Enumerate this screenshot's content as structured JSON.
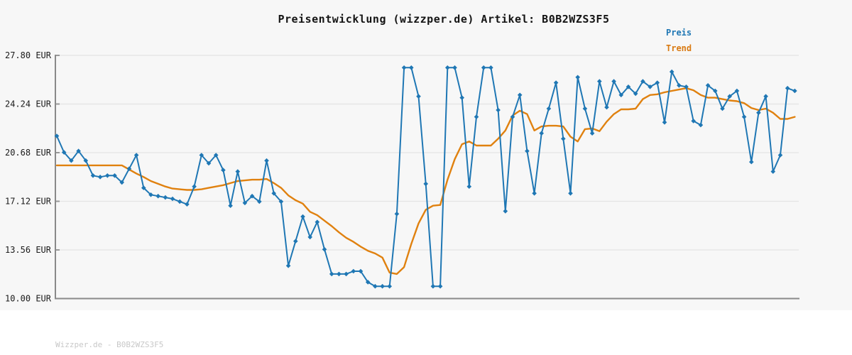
{
  "page": {
    "title": "Preisentwicklung (wizzper.de) Artikel: B0B2WZS3F5",
    "watermark": "Wizzper.de - B0B2WZS3F5",
    "background": "#f7f7f7",
    "footer_background": "#ffffff"
  },
  "legend": [
    {
      "label": "Preis",
      "color": "#1f77b4"
    },
    {
      "label": "Trend",
      "color": "#d97a12"
    }
  ],
  "chart_data": {
    "type": "line",
    "title": "Preisentwicklung (wizzper.de) Artikel: B0B2WZS3F5",
    "xlabel": "",
    "ylabel": "",
    "ylim": [
      10.0,
      27.8
    ],
    "y_ticks": [
      27.8,
      24.24,
      20.68,
      17.12,
      13.56,
      10.0
    ],
    "y_tick_labels": [
      "27.80 EUR",
      "24.24 EUR",
      "20.68 EUR",
      "17.12 EUR",
      "13.56 EUR",
      "10.00 EUR"
    ],
    "x_axis": {
      "tick_labels_visible": false,
      "point_count": 103
    },
    "grid": "horizontal",
    "legend_position": "top-right",
    "colors": {
      "price": "#1f77b4",
      "trend": "#e0810f",
      "gridline": "#e4e4e4",
      "axis": "#8a8a8a",
      "tick": "#999999"
    },
    "series": [
      {
        "name": "Preis",
        "marker": "diamond",
        "values": [
          21.9,
          20.7,
          20.1,
          20.8,
          20.1,
          19.0,
          18.9,
          19.0,
          19.0,
          18.5,
          19.5,
          20.5,
          18.1,
          17.6,
          17.5,
          17.4,
          17.3,
          17.1,
          16.9,
          18.2,
          20.5,
          19.9,
          20.5,
          19.4,
          16.8,
          19.3,
          17.0,
          17.5,
          17.1,
          20.1,
          17.7,
          17.1,
          12.4,
          14.2,
          16.0,
          14.5,
          15.6,
          13.6,
          11.8,
          11.8,
          11.8,
          12.0,
          12.0,
          11.2,
          10.9,
          10.9,
          10.9,
          16.2,
          26.9,
          26.9,
          24.8,
          18.4,
          10.9,
          10.9,
          26.9,
          26.9,
          24.7,
          18.2,
          23.3,
          26.9,
          26.9,
          23.8,
          16.4,
          23.3,
          24.9,
          20.8,
          17.7,
          22.1,
          23.9,
          25.8,
          21.7,
          17.7,
          26.2,
          23.9,
          22.1,
          25.9,
          24.0,
          25.9,
          24.9,
          25.5,
          25.0,
          25.9,
          25.5,
          25.8,
          22.9,
          26.6,
          25.6,
          25.5,
          23.0,
          22.7,
          25.6,
          25.2,
          23.9,
          24.8,
          25.2,
          23.3,
          20.0,
          23.6,
          24.8,
          19.3,
          20.5,
          25.4,
          25.2
        ]
      },
      {
        "name": "Trend",
        "marker": "none",
        "values": [
          19.75,
          19.75,
          19.75,
          19.75,
          19.75,
          19.75,
          19.75,
          19.75,
          19.75,
          19.75,
          19.45,
          19.15,
          18.9,
          18.6,
          18.4,
          18.2,
          18.05,
          18.0,
          17.95,
          17.95,
          18.0,
          18.1,
          18.2,
          18.3,
          18.45,
          18.6,
          18.65,
          18.7,
          18.7,
          18.75,
          18.45,
          18.1,
          17.55,
          17.2,
          16.95,
          16.35,
          16.1,
          15.7,
          15.3,
          14.85,
          14.45,
          14.15,
          13.8,
          13.5,
          13.3,
          13.0,
          11.9,
          11.8,
          12.3,
          14.0,
          15.5,
          16.5,
          16.8,
          16.85,
          18.7,
          20.2,
          21.3,
          21.5,
          21.2,
          21.2,
          21.2,
          21.7,
          22.3,
          23.4,
          23.75,
          23.5,
          22.3,
          22.6,
          22.65,
          22.65,
          22.6,
          21.85,
          21.5,
          22.4,
          22.45,
          22.25,
          22.95,
          23.5,
          23.85,
          23.85,
          23.9,
          24.6,
          24.9,
          24.95,
          25.1,
          25.2,
          25.3,
          25.4,
          25.25,
          24.9,
          24.7,
          24.7,
          24.6,
          24.5,
          24.45,
          24.3,
          23.95,
          23.8,
          23.9,
          23.6,
          23.15,
          23.15,
          23.3
        ]
      }
    ]
  }
}
